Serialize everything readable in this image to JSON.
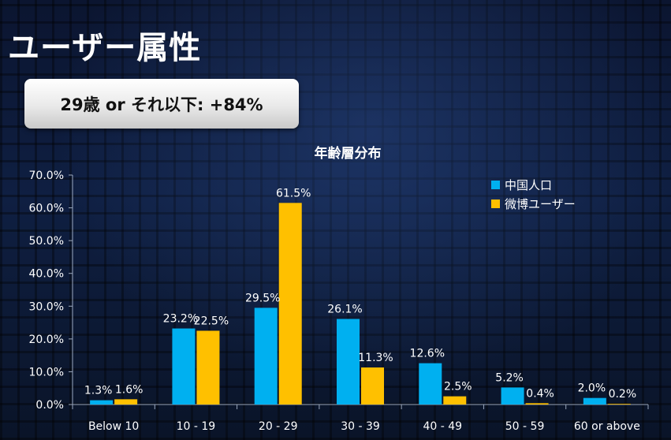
{
  "page": {
    "title": "ユーザー属性",
    "headline": "29歳 or それ以下: +84%"
  },
  "colors": {
    "series1": "#00b0f0",
    "series2": "#ffc000",
    "text": "#ffffff",
    "axis": "#9aa7bd"
  },
  "chart_data": {
    "type": "bar",
    "title": "年齢層分布",
    "xlabel": "",
    "ylabel": "",
    "ylim": [
      0,
      70
    ],
    "yticks": [
      "0.0%",
      "10.0%",
      "20.0%",
      "30.0%",
      "40.0%",
      "50.0%",
      "60.0%",
      "70.0%"
    ],
    "categories": [
      "Below 10",
      "10 - 19",
      "20 - 29",
      "30 - 39",
      "40 - 49",
      "50 - 59",
      "60 or above"
    ],
    "series": [
      {
        "name": "中国人口",
        "values": [
          1.3,
          23.2,
          29.5,
          26.1,
          12.6,
          5.2,
          2.0
        ],
        "labels": [
          "1.3%",
          "23.2%",
          "29.5%",
          "26.1%",
          "12.6%",
          "5.2%",
          "2.0%"
        ]
      },
      {
        "name": "微博ユーザー",
        "values": [
          1.6,
          22.5,
          61.5,
          11.3,
          2.5,
          0.4,
          0.2
        ],
        "labels": [
          "1.6%",
          "22.5%",
          "61.5%",
          "11.3%",
          "2.5%",
          "0.4%",
          "0.2%"
        ]
      }
    ],
    "legend_position": "top-right",
    "grid": false
  }
}
